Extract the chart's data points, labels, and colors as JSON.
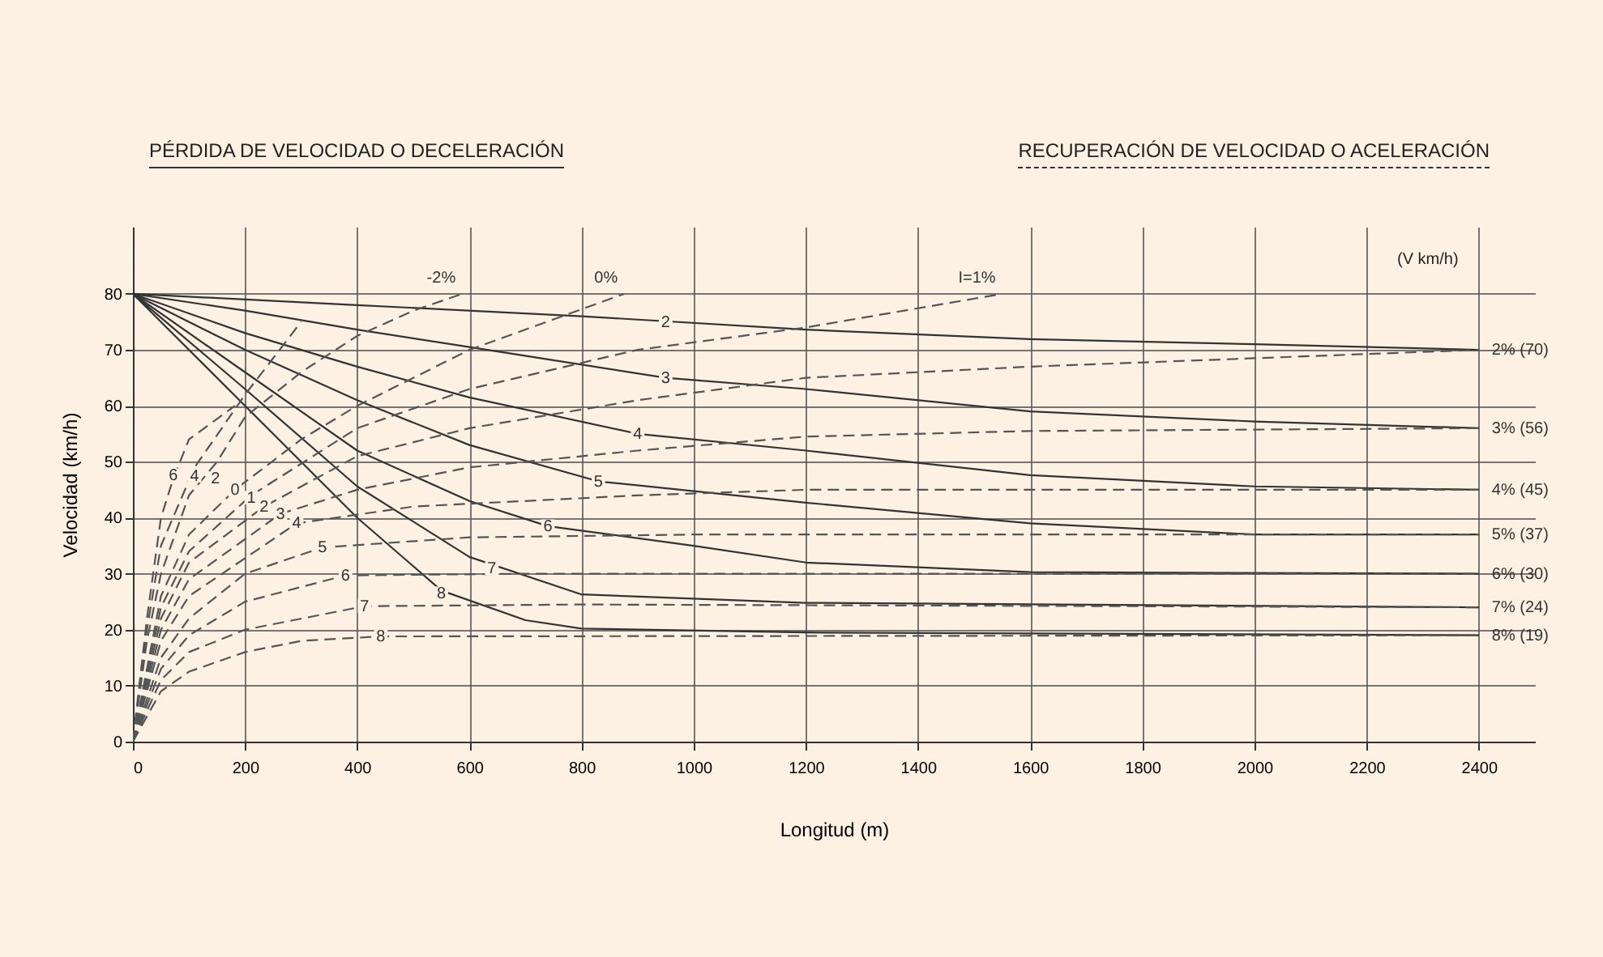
{
  "chart_data": {
    "type": "line",
    "xlabel": "Longitud (m)",
    "ylabel": "Velocidad (km/h)",
    "xlim": [
      0,
      2500
    ],
    "ylim": [
      0,
      92
    ],
    "xticks": [
      0,
      200,
      400,
      600,
      800,
      1000,
      1200,
      1400,
      1600,
      1800,
      2000,
      2200,
      2400
    ],
    "yticks": [
      0,
      10,
      20,
      30,
      40,
      50,
      60,
      70,
      80
    ],
    "grid": true,
    "marker": "none",
    "series": [
      {
        "name": "2%  (70)",
        "color": "#333333",
        "line_style": "solid",
        "x": [
          0,
          400,
          800,
          1200,
          1600,
          2000,
          2400
        ],
        "values": [
          80,
          78,
          76,
          73.6,
          71.9,
          71,
          70
        ]
      },
      {
        "name": "3%  (56)",
        "color": "#333333",
        "line_style": "solid",
        "x": [
          0,
          200,
          400,
          600,
          950,
          1200,
          1600,
          2000,
          2400
        ],
        "values": [
          80,
          77,
          73.6,
          70.5,
          65,
          63,
          59,
          57.2,
          56
        ]
      },
      {
        "name": "4%  (45)",
        "color": "#333333",
        "line_style": "solid",
        "x": [
          0,
          200,
          400,
          600,
          900,
          1200,
          1600,
          2000,
          2400
        ],
        "values": [
          80,
          73,
          67,
          61.5,
          55,
          52,
          47.6,
          45.6,
          45
        ]
      },
      {
        "name": "5%  (37)",
        "color": "#333333",
        "line_style": "solid",
        "x": [
          0,
          200,
          400,
          600,
          830,
          1200,
          1600,
          2000,
          2400
        ],
        "values": [
          80,
          70,
          61,
          53,
          46.5,
          42.7,
          39,
          37,
          37
        ]
      },
      {
        "name": "6%  (30)",
        "color": "#333333",
        "line_style": "solid",
        "x": [
          0,
          200,
          400,
          600,
          740,
          1000,
          1200,
          1600,
          2400
        ],
        "values": [
          80,
          66,
          52,
          43,
          38.5,
          35,
          32,
          30.3,
          30
        ]
      },
      {
        "name": "7%  (24)",
        "color": "#333333",
        "line_style": "solid",
        "x": [
          0,
          200,
          400,
          600,
          800,
          1200,
          2400
        ],
        "values": [
          80,
          63,
          45.6,
          33,
          26.3,
          24.8,
          24
        ]
      },
      {
        "name": "8%  (19)",
        "color": "#333333",
        "line_style": "solid",
        "x": [
          0,
          200,
          400,
          550,
          700,
          800,
          1200,
          2400
        ],
        "values": [
          80,
          60,
          40,
          27,
          21.7,
          20.2,
          19.5,
          19
        ]
      },
      {
        "color": "#555555",
        "line_style": "dashed",
        "x": [
          0,
          25,
          50,
          72,
          100,
          182
        ],
        "values": [
          0,
          22,
          40,
          47,
          54,
          60
        ]
      },
      {
        "color": "#555555",
        "line_style": "dashed",
        "x": [
          0,
          25,
          50,
          110,
          200,
          300
        ],
        "values": [
          0,
          20,
          35,
          49,
          62,
          75
        ]
      },
      {
        "name": "-2%",
        "color": "#555555",
        "line_style": "dashed",
        "x": [
          0,
          25,
          50,
          100,
          150,
          200,
          300,
          400,
          500,
          587
        ],
        "values": [
          0,
          18,
          30,
          44,
          50,
          58,
          66,
          72.5,
          77,
          80
        ]
      },
      {
        "name": "0%",
        "color": "#555555",
        "line_style": "dashed",
        "x": [
          0,
          50,
          100,
          182,
          300,
          400,
          600,
          876
        ],
        "values": [
          0,
          26,
          37,
          45,
          54,
          60,
          70,
          80
        ]
      },
      {
        "name": "I=1%",
        "color": "#555555",
        "line_style": "dashed",
        "x": [
          0,
          50,
          100,
          211,
          400,
          600,
          900,
          1200,
          1550
        ],
        "values": [
          0,
          24,
          34,
          44,
          56,
          63,
          70,
          74,
          80
        ]
      },
      {
        "color": "#555555",
        "line_style": "dashed",
        "x": [
          0,
          50,
          100,
          234,
          400,
          600,
          900,
          1200,
          1600,
          2000,
          2400
        ],
        "values": [
          0,
          22,
          32,
          42,
          51,
          56,
          61,
          65,
          67,
          68.5,
          70
        ]
      },
      {
        "color": "#555555",
        "line_style": "dashed",
        "x": [
          0,
          50,
          100,
          263,
          400,
          600,
          900,
          1200,
          1600,
          2400
        ],
        "values": [
          0,
          20,
          29,
          40.7,
          45,
          49,
          52,
          54.5,
          55.5,
          56
        ]
      },
      {
        "color": "#555555",
        "line_style": "dashed",
        "x": [
          0,
          50,
          100,
          292,
          500,
          900,
          1200,
          2400
        ],
        "values": [
          0,
          18,
          26,
          39,
          42,
          44,
          45,
          45
        ]
      },
      {
        "color": "#555555",
        "line_style": "dashed",
        "x": [
          0,
          50,
          100,
          200,
          338,
          600,
          1000,
          2400
        ],
        "values": [
          0,
          15,
          22,
          30,
          34.7,
          36.5,
          37,
          37
        ]
      },
      {
        "color": "#555555",
        "line_style": "dashed",
        "x": [
          0,
          50,
          100,
          200,
          379,
          700,
          2400
        ],
        "values": [
          0,
          13,
          19,
          25,
          29.7,
          30,
          30
        ]
      },
      {
        "color": "#555555",
        "line_style": "dashed",
        "x": [
          0,
          50,
          100,
          200,
          413,
          800,
          2400
        ],
        "values": [
          0,
          11,
          16,
          20,
          24.2,
          24.5,
          24
        ]
      },
      {
        "color": "#555555",
        "line_style": "dashed",
        "x": [
          0,
          50,
          100,
          200,
          300,
          442,
          2400
        ],
        "values": [
          0,
          9,
          12.5,
          16,
          18,
          18.8,
          19
        ]
      }
    ],
    "annotations": [
      "PÉRDIDA DE VELOCIDAD O DECELERACIÓN",
      "RECUPERACIÓN DE VELOCIDAD O ACELERACIÓN",
      "(V km/h)",
      {
        "text": "2",
        "x": 950,
        "y": 75
      },
      {
        "text": "3",
        "x": 950,
        "y": 65
      },
      {
        "text": "4",
        "x": 900,
        "y": 55
      },
      {
        "text": "5",
        "x": 830,
        "y": 46.5
      },
      {
        "text": "6",
        "x": 740,
        "y": 38.5
      },
      {
        "text": "7",
        "x": 640,
        "y": 31
      },
      {
        "text": "8",
        "x": 550,
        "y": 26.5
      },
      {
        "text": "6",
        "x": 72,
        "y": 47.6
      },
      {
        "text": "4",
        "x": 110,
        "y": 47.5
      },
      {
        "text": "2",
        "x": 147,
        "y": 47
      },
      {
        "text": "0",
        "x": 182,
        "y": 45
      },
      {
        "text": "1",
        "x": 211,
        "y": 43.6
      },
      {
        "text": "2",
        "x": 234,
        "y": 42
      },
      {
        "text": "3",
        "x": 263,
        "y": 40.7
      },
      {
        "text": "4",
        "x": 292,
        "y": 39
      },
      {
        "text": "5",
        "x": 338,
        "y": 34.7
      },
      {
        "text": "6",
        "x": 379,
        "y": 29.7
      },
      {
        "text": "7",
        "x": 413,
        "y": 24.2
      },
      {
        "text": "8",
        "x": 442,
        "y": 18.8
      }
    ]
  }
}
